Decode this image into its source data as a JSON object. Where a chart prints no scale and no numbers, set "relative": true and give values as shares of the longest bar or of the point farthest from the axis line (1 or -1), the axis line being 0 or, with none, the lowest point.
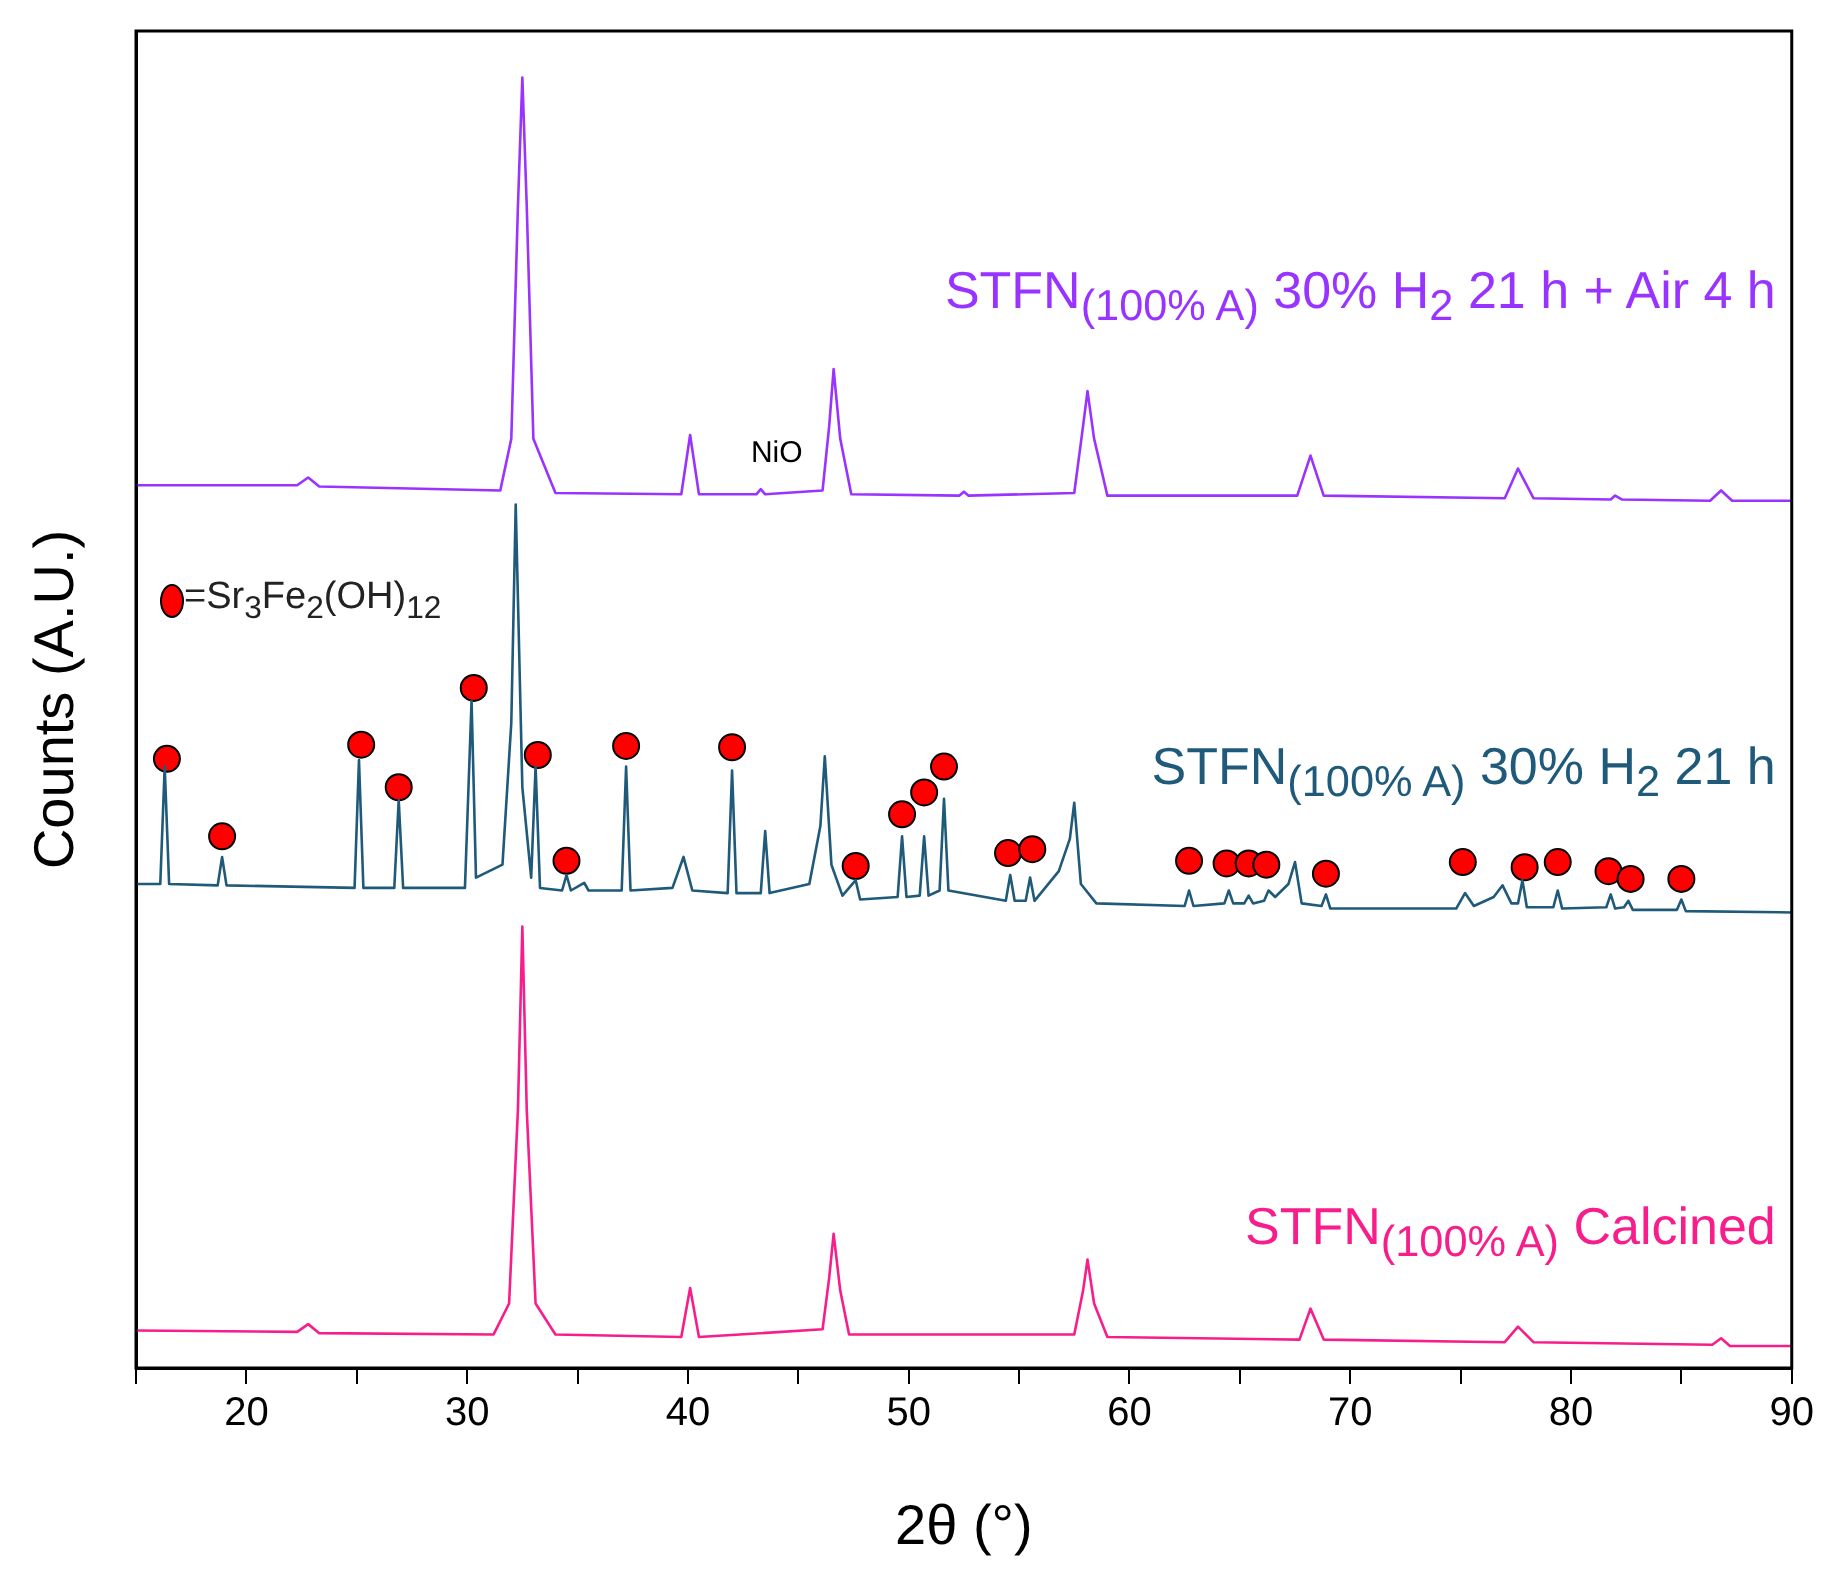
{
  "chart_data": {
    "type": "line",
    "relative": true,
    "xlabel": "2θ (°)",
    "ylabel": "Counts (A.U.)",
    "xlim": [
      15,
      90
    ],
    "xticks": [
      {
        "value": 15,
        "label": null
      },
      20,
      {
        "value": 25,
        "label": null
      },
      30,
      {
        "value": 35,
        "label": null
      },
      40,
      {
        "value": 45,
        "label": null
      },
      50,
      {
        "value": 55,
        "label": null
      },
      60,
      {
        "value": 65,
        "label": null
      },
      70,
      {
        "value": 75,
        "label": null
      },
      80,
      {
        "value": 85,
        "label": null
      },
      90
    ],
    "legend": "top left",
    "grid": false,
    "annotations": [
      {
        "text": "NiO",
        "x": 43.3,
        "y": 0.681
      }
    ],
    "series": [
      {
        "name": "STFN$_{(100% A)}$ 30% H$_{2}$ 21 h + Air 4 h",
        "color": "#9933ff",
        "x": [
          15,
          22.3,
          22.8,
          23.3,
          31.5,
          32.0,
          32.3,
          32.5,
          32.7,
          33.0,
          34,
          39.7,
          40.1,
          40.5,
          43.1,
          43.3,
          43.5,
          46.1,
          46.4,
          46.6,
          46.9,
          47.4,
          52.3,
          52.5,
          52.7,
          57.5,
          57.9,
          58.1,
          58.4,
          59,
          67.6,
          68.2,
          68.8,
          77,
          77.6,
          78.3,
          81.8,
          82,
          82.3,
          86.3,
          86.8,
          87.3,
          90
        ],
        "values": [
          0.684,
          0.684,
          0.69,
          0.683,
          0.68,
          0.72,
          0.9,
          1.0,
          0.9,
          0.72,
          0.678,
          0.677,
          0.723,
          0.677,
          0.677,
          0.681,
          0.677,
          0.68,
          0.73,
          0.774,
          0.72,
          0.677,
          0.676,
          0.679,
          0.676,
          0.678,
          0.73,
          0.757,
          0.72,
          0.676,
          0.676,
          0.707,
          0.676,
          0.674,
          0.697,
          0.674,
          0.673,
          0.676,
          0.673,
          0.672,
          0.68,
          0.672,
          0.672
        ]
      },
      {
        "name": "STFN$_{(100% A)}$ 30% H$_{2}$ 21 h",
        "color": "#1f5a7a",
        "x": [
          15,
          16.1,
          16.3,
          16.5,
          18.7,
          18.9,
          19.1,
          24.9,
          25.1,
          25.3,
          26.7,
          26.9,
          27.1,
          29.9,
          30.2,
          30.4,
          31.6,
          32.0,
          32.2,
          32.5,
          32.9,
          33.1,
          33.3,
          34.3,
          34.5,
          34.7,
          35.3,
          35.5,
          37.0,
          37.2,
          37.4,
          39.3,
          39.8,
          40.2,
          41.8,
          42.0,
          42.2,
          43.3,
          43.5,
          43.7,
          45.5,
          46.0,
          46.2,
          46.5,
          47.0,
          47.6,
          47.8,
          49.5,
          49.7,
          49.9,
          50.5,
          50.7,
          50.9,
          51.4,
          51.6,
          51.8,
          54.4,
          54.6,
          54.8,
          55.3,
          55.5,
          55.7,
          56.8,
          57.3,
          57.5,
          57.8,
          58.5,
          62.5,
          62.7,
          62.9,
          64.3,
          64.5,
          64.7,
          65.2,
          65.4,
          65.6,
          66.1,
          66.3,
          66.6,
          67.2,
          67.5,
          67.8,
          68.7,
          68.9,
          69.1,
          74.8,
          75.2,
          75.6,
          76.5,
          76.9,
          77.3,
          77.6,
          77.8,
          78.0,
          79.2,
          79.4,
          79.6,
          81.6,
          81.8,
          82.0,
          82.4,
          82.6,
          82.8,
          84.8,
          85.0,
          85.2,
          90
        ],
        "values": [
          0.375,
          0.375,
          0.466,
          0.375,
          0.374,
          0.396,
          0.374,
          0.372,
          0.471,
          0.372,
          0.372,
          0.44,
          0.372,
          0.372,
          0.517,
          0.38,
          0.39,
          0.5,
          0.669,
          0.45,
          0.38,
          0.466,
          0.372,
          0.37,
          0.382,
          0.37,
          0.376,
          0.37,
          0.37,
          0.466,
          0.37,
          0.372,
          0.396,
          0.37,
          0.368,
          0.463,
          0.368,
          0.368,
          0.416,
          0.368,
          0.375,
          0.42,
          0.474,
          0.39,
          0.366,
          0.378,
          0.363,
          0.365,
          0.412,
          0.365,
          0.366,
          0.412,
          0.366,
          0.37,
          0.441,
          0.37,
          0.362,
          0.382,
          0.362,
          0.362,
          0.38,
          0.362,
          0.385,
          0.41,
          0.438,
          0.375,
          0.36,
          0.358,
          0.37,
          0.358,
          0.36,
          0.37,
          0.36,
          0.36,
          0.366,
          0.36,
          0.362,
          0.37,
          0.365,
          0.375,
          0.392,
          0.36,
          0.358,
          0.367,
          0.356,
          0.356,
          0.368,
          0.358,
          0.365,
          0.374,
          0.36,
          0.36,
          0.378,
          0.357,
          0.357,
          0.37,
          0.356,
          0.357,
          0.367,
          0.356,
          0.357,
          0.362,
          0.355,
          0.355,
          0.363,
          0.354,
          0.353
        ]
      },
      {
        "name": "STFN$_{(100% A)}$ Calcined",
        "color": "#f71e8c",
        "x": [
          15,
          22.3,
          22.8,
          23.3,
          31.2,
          31.9,
          32.3,
          32.5,
          32.7,
          33.1,
          34,
          39.7,
          40.1,
          40.5,
          46.1,
          46.4,
          46.6,
          46.9,
          47.3,
          57.5,
          57.9,
          58.1,
          58.4,
          59,
          67.7,
          68.2,
          68.8,
          77,
          77.6,
          78.3,
          86.4,
          86.8,
          87.2,
          90
        ],
        "values": [
          0.029,
          0.028,
          0.034,
          0.027,
          0.026,
          0.05,
          0.2,
          0.342,
          0.2,
          0.05,
          0.026,
          0.024,
          0.062,
          0.024,
          0.03,
          0.07,
          0.104,
          0.06,
          0.026,
          0.026,
          0.06,
          0.084,
          0.05,
          0.024,
          0.022,
          0.046,
          0.022,
          0.02,
          0.032,
          0.02,
          0.018,
          0.023,
          0.017,
          0.017
        ]
      },
      {
        "name": "=Sr$_{3}$Fe$_{2}$(OH)$_{12}$",
        "type": "scatter",
        "marker": "circle",
        "color": "#ff0000",
        "x": [
          16.4,
          18.9,
          25.2,
          26.9,
          30.3,
          33.2,
          34.5,
          37.2,
          42.0,
          47.6,
          49.7,
          50.7,
          51.6,
          54.5,
          55.6,
          62.7,
          64.4,
          65.4,
          66.2,
          68.9,
          75.1,
          77.9,
          79.4,
          81.7,
          82.7,
          85.0
        ],
        "values": [
          0.472,
          0.412,
          0.483,
          0.45,
          0.527,
          0.475,
          0.393,
          0.482,
          0.481,
          0.389,
          0.429,
          0.446,
          0.466,
          0.399,
          0.402,
          0.393,
          0.391,
          0.391,
          0.39,
          0.383,
          0.392,
          0.388,
          0.392,
          0.385,
          0.379,
          0.379
        ]
      }
    ]
  }
}
